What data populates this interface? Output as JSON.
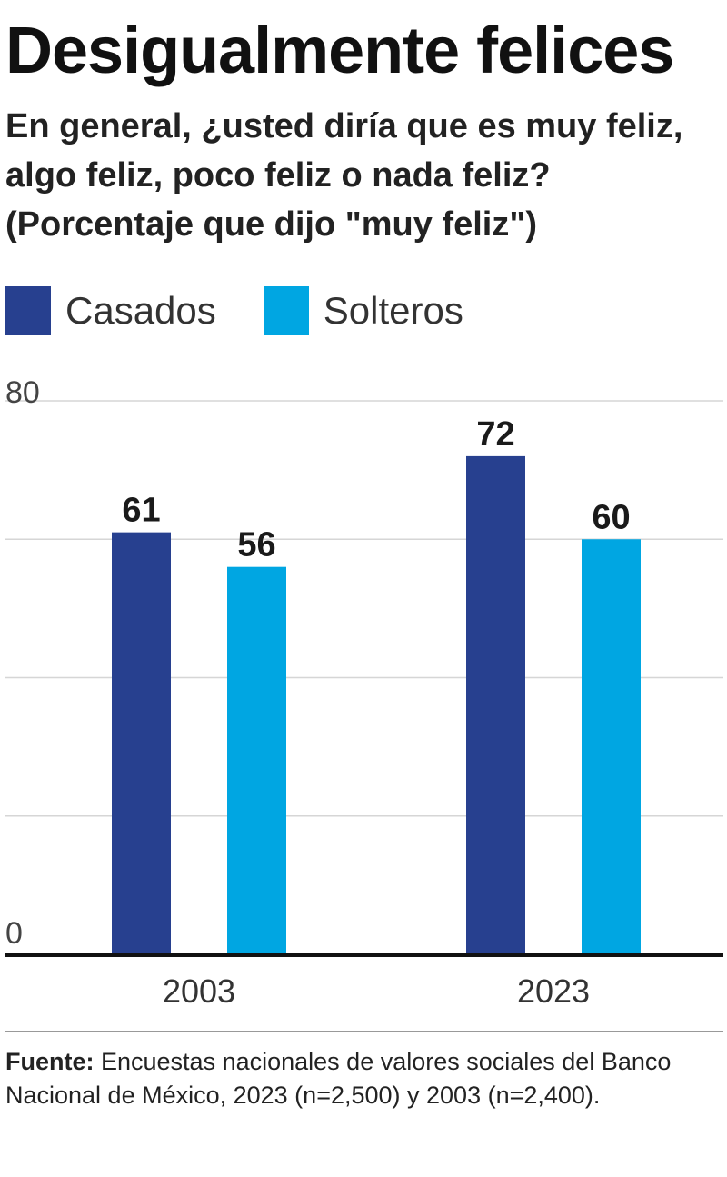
{
  "header": {
    "title": "Desigualmente felices",
    "subtitle": "En general, ¿usted diría que es muy feliz, algo feliz, poco feliz o nada feliz? (Porcentaje que dijo \"muy feliz\")"
  },
  "footer": {
    "label": "Fuente:",
    "text": " Encuestas nacionales de valores sociales del Banco Nacional de México, 2023 (n=2,500) y 2003 (n=2,400)."
  },
  "chart_data": {
    "type": "bar",
    "title": "Desigualmente felices",
    "categories": [
      "2003",
      "2023"
    ],
    "series": [
      {
        "name": "Casados",
        "color": "#27408f",
        "values": [
          61,
          72
        ]
      },
      {
        "name": "Solteros",
        "color": "#00a6e2",
        "values": [
          56,
          60
        ]
      }
    ],
    "ylim": [
      0,
      80
    ],
    "yticks": [
      0,
      20,
      40,
      60,
      80
    ],
    "ytick_labels": [
      "0",
      "80"
    ],
    "grid": true,
    "legend": "top-left"
  }
}
